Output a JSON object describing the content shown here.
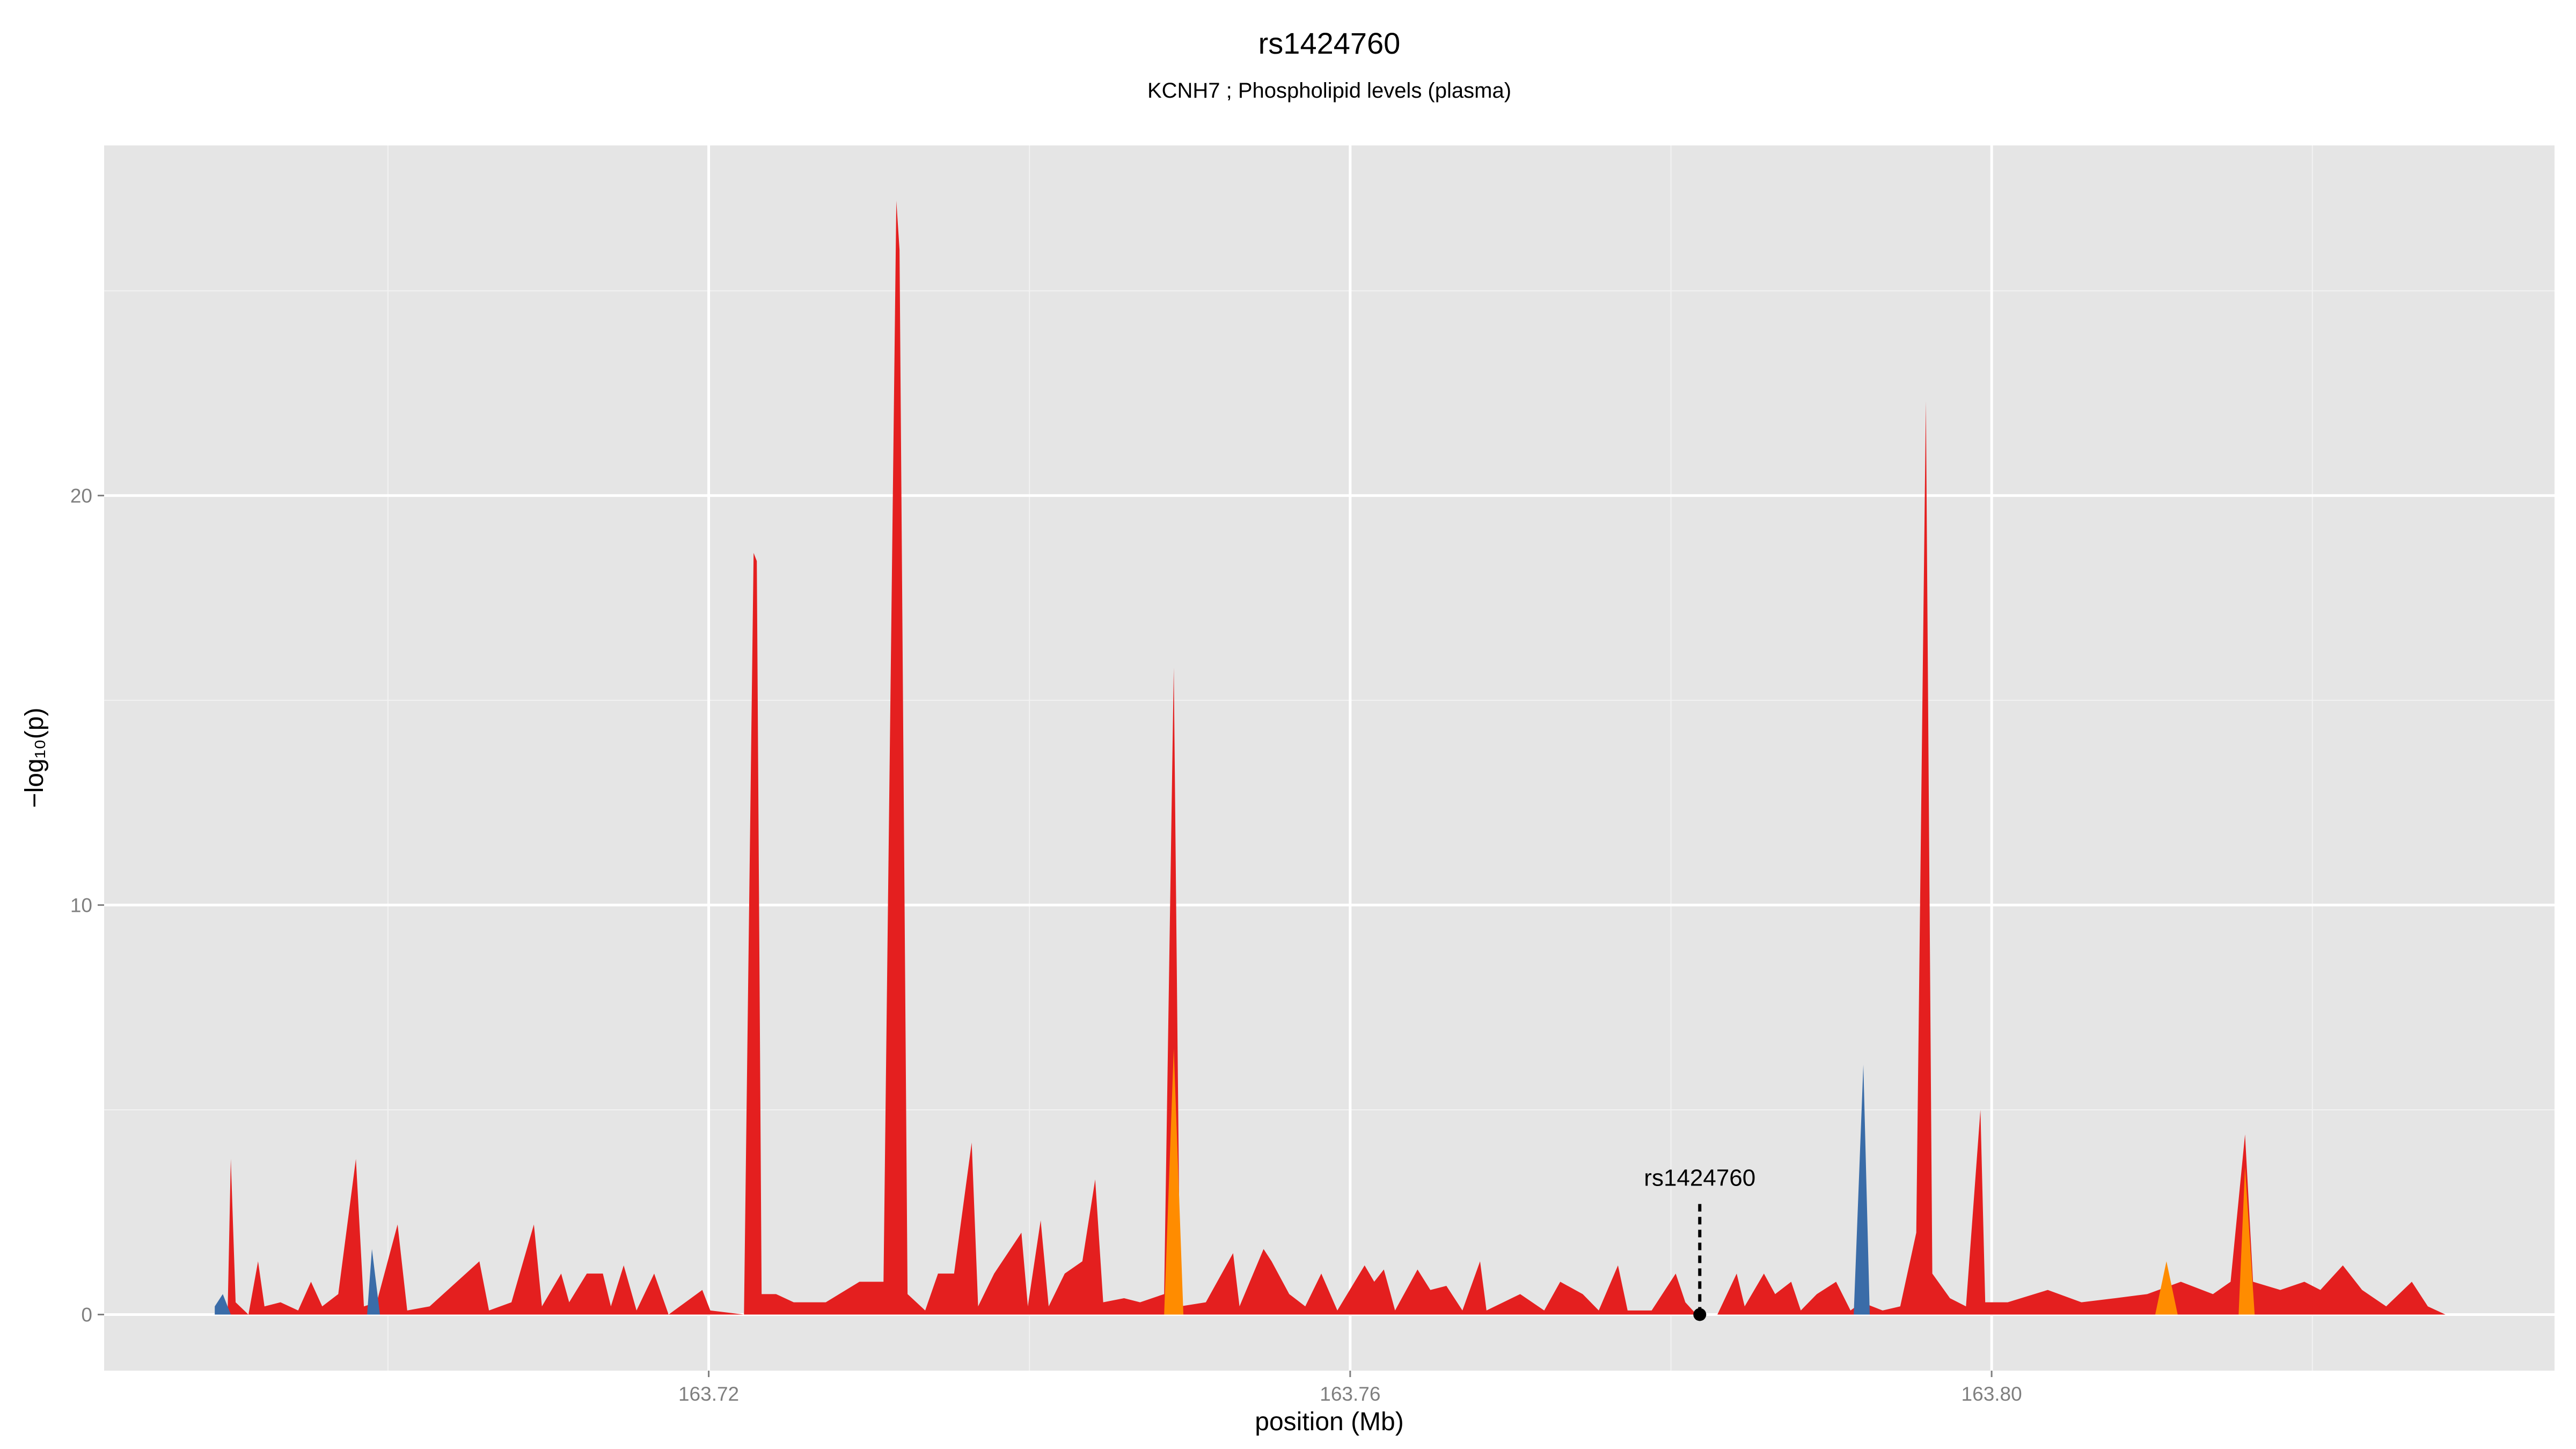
{
  "chart_data": {
    "type": "area",
    "title": "rs1424760",
    "subtitle": "KCNH7 ; Phospholipid levels (plasma)",
    "x_label": "position (Mb)",
    "y_label": "−log₁₀(p)",
    "xlim": [
      163.6823,
      163.8351
    ],
    "ylim": [
      -1.37,
      28.55
    ],
    "xticks": [
      {
        "value": 163.72,
        "label": "163.72"
      },
      {
        "value": 163.76,
        "label": "163.76"
      },
      {
        "value": 163.8,
        "label": "163.80"
      }
    ],
    "yticks": [
      0,
      10,
      20
    ],
    "grid": true,
    "series": [
      {
        "color": "#e41f1f",
        "x": [
          163.6892,
          163.69,
          163.6902,
          163.6905,
          163.6913,
          163.6919,
          163.6923,
          163.6933,
          163.6944,
          163.6952,
          163.6959,
          163.6969,
          163.698,
          163.6985,
          163.6993,
          163.7006,
          163.7012,
          163.7026,
          163.7057,
          163.7063,
          163.7077,
          163.7091,
          163.7096,
          163.7108,
          163.7113,
          163.7124,
          163.7134,
          163.7139,
          163.7147,
          163.7155,
          163.7166,
          163.7175,
          163.7196,
          163.7201,
          163.7222,
          163.7228,
          163.723,
          163.7233,
          163.7242,
          163.7253,
          163.7273,
          163.7294,
          163.7309,
          163.7317,
          163.7319,
          163.7324,
          163.7335,
          163.7343,
          163.7353,
          163.7364,
          163.7368,
          163.7378,
          163.7395,
          163.7399,
          163.7407,
          163.7412,
          163.7422,
          163.7433,
          163.7441,
          163.7446,
          163.7459,
          163.7469,
          163.7484,
          163.749,
          163.7494,
          163.751,
          163.7527,
          163.7531,
          163.7546,
          163.7551,
          163.7562,
          163.7572,
          163.7582,
          163.7592,
          163.7609,
          163.7615,
          163.7621,
          163.7628,
          163.7642,
          163.765,
          163.766,
          163.767,
          163.7681,
          163.7685,
          163.7706,
          163.7721,
          163.7731,
          163.7745,
          163.7755,
          163.7767,
          163.7773,
          163.7788,
          163.7803,
          163.7809,
          163.7816,
          163.7829,
          163.7841,
          163.7846,
          163.7858,
          163.7865,
          163.7875,
          163.7881,
          163.7891,
          163.7903,
          163.7912,
          163.7919,
          163.7932,
          163.7943,
          163.7953,
          163.7959,
          163.7963,
          163.7974,
          163.7984,
          163.7993,
          163.7996,
          163.801,
          163.8035,
          163.8056,
          163.8077,
          163.8097,
          163.8118,
          163.8138,
          163.8149,
          163.8158,
          163.8163,
          163.818,
          163.8195,
          163.8205,
          163.8219,
          163.8231,
          163.8246,
          163.8262,
          163.8272,
          163.8283
        ],
        "values": [
          0,
          0,
          3.8,
          0.3,
          0,
          1.3,
          0.2,
          0.3,
          0.1,
          0.8,
          0.2,
          0.5,
          3.8,
          0.2,
          0.3,
          2.2,
          0.1,
          0.2,
          1.3,
          0.1,
          0.3,
          2.2,
          0.2,
          1.0,
          0.3,
          1.0,
          1.0,
          0.2,
          1.2,
          0.1,
          1.0,
          0,
          0.6,
          0.1,
          0,
          18.6,
          18.4,
          0.5,
          0.5,
          0.3,
          0.3,
          0.8,
          0.8,
          27.2,
          26.0,
          0.5,
          0.1,
          1.0,
          1.0,
          4.2,
          0.2,
          1.0,
          2.0,
          0.2,
          2.3,
          0.2,
          1.0,
          1.3,
          3.3,
          0.3,
          0.4,
          0.3,
          0.5,
          15.8,
          0.2,
          0.3,
          1.5,
          0.2,
          1.6,
          1.3,
          0.5,
          0.2,
          1.0,
          0.1,
          1.2,
          0.8,
          1.1,
          0.1,
          1.1,
          0.6,
          0.7,
          0.1,
          1.3,
          0.1,
          0.5,
          0.1,
          0.8,
          0.5,
          0.1,
          1.2,
          0.1,
          0.1,
          1.0,
          0.3,
          0,
          0,
          1.0,
          0.2,
          1.0,
          0.5,
          0.8,
          0.1,
          0.5,
          0.8,
          0.1,
          0.3,
          0.1,
          0.2,
          2.0,
          22.3,
          1.0,
          0.4,
          0.2,
          5.0,
          0.3,
          0.3,
          0.6,
          0.3,
          0.4,
          0.5,
          0.8,
          0.5,
          0.8,
          4.4,
          0.8,
          0.6,
          0.8,
          0.6,
          1.2,
          0.6,
          0.2,
          0.8,
          0.2,
          0
        ]
      },
      {
        "color": "#3a6ca8",
        "x": [
          163.6892,
          163.6897,
          163.6902,
          163.6987,
          163.699,
          163.6995,
          163.7914,
          163.792,
          163.7924
        ],
        "values": [
          0.2,
          0.5,
          0,
          0,
          1.6,
          0,
          0,
          6.1,
          0
        ]
      },
      {
        "color": "#ff8c00",
        "x": [
          163.7484,
          163.749,
          163.7496,
          163.8102,
          163.8109,
          163.8116,
          163.8154,
          163.8158,
          163.8164
        ],
        "values": [
          0,
          6.5,
          0,
          0,
          1.3,
          0,
          0,
          3.6,
          0
        ]
      }
    ],
    "annotation": {
      "text": "rs1424760",
      "x": 163.7818,
      "y": 0
    }
  }
}
